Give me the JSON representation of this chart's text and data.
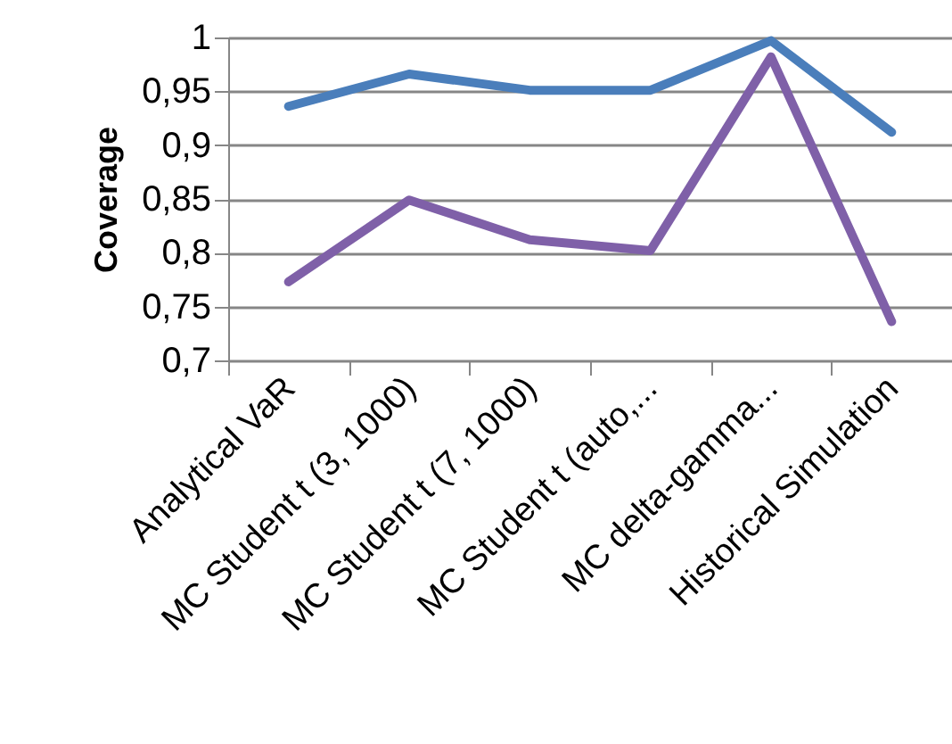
{
  "chart_data": {
    "type": "line",
    "ylabel": "Coverage",
    "categories": [
      "Analytical VaR",
      "MC Student t (3, 1000)",
      "MC Student t (7, 1000)",
      "MC Student t  (auto,...",
      "MC delta-gamma...",
      "Historical Simulation"
    ],
    "series": [
      {
        "color": "#4a7ebb",
        "values": [
          0.936,
          0.966,
          0.951,
          0.951,
          0.997,
          0.912
        ]
      },
      {
        "color": "#7f60a8",
        "values": [
          0.773,
          0.849,
          0.812,
          0.802,
          0.982,
          0.736
        ]
      }
    ],
    "ylim": [
      0.7,
      1
    ],
    "yticks": [
      {
        "value": 0.7,
        "label": "0,7"
      },
      {
        "value": 0.75,
        "label": "0,75"
      },
      {
        "value": 0.8,
        "label": "0,8"
      },
      {
        "value": 0.85,
        "label": "0,85"
      },
      {
        "value": 0.9,
        "label": "0,9"
      },
      {
        "value": 0.95,
        "label": "0,95"
      },
      {
        "value": 1,
        "label": "1"
      }
    ],
    "grid": "y",
    "marker": "none",
    "line_style": "solid"
  }
}
